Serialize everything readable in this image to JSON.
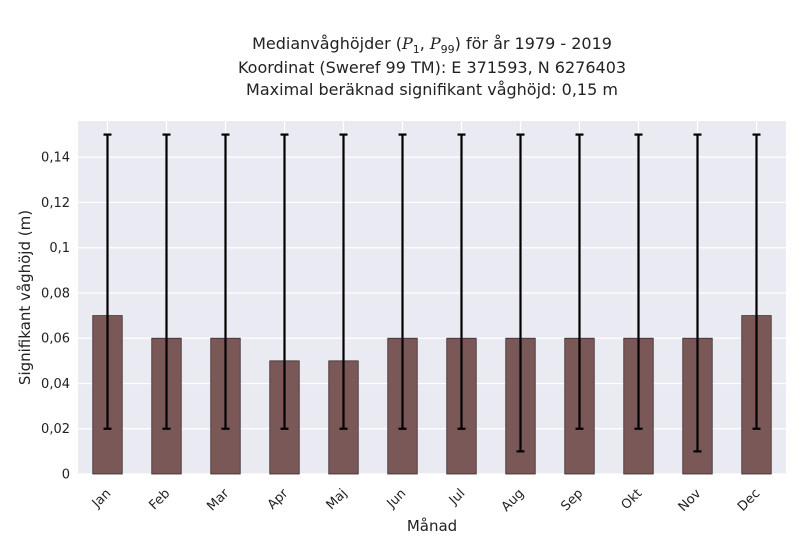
{
  "title": {
    "line1_prefix": "Medianvåghöjder (",
    "p_a": "P",
    "p_a_sub": "1",
    "sep": ", ",
    "p_b": "P",
    "p_b_sub": "99",
    "line1_suffix": ") för år 1979 - 2019",
    "line2": "Koordinat (Sweref 99 TM): E 371593, N 6276403",
    "line3": "Maximal beräknad signifikant våghöjd: 0,15 m"
  },
  "colors": {
    "plot_bg": "#eaeaf2",
    "grid": "#ffffff",
    "bar": "#7b5858",
    "bar_edge": "#3a2a2a",
    "errorbar": "#000000"
  },
  "chart_data": {
    "type": "bar",
    "categories": [
      "Jan",
      "Feb",
      "Mar",
      "Apr",
      "Maj",
      "Jun",
      "Jul",
      "Aug",
      "Sep",
      "Okt",
      "Nov",
      "Dec"
    ],
    "values": [
      0.07,
      0.06,
      0.06,
      0.05,
      0.05,
      0.06,
      0.06,
      0.06,
      0.06,
      0.06,
      0.06,
      0.07
    ],
    "err_low": [
      0.02,
      0.02,
      0.02,
      0.02,
      0.02,
      0.02,
      0.02,
      0.01,
      0.02,
      0.02,
      0.01,
      0.02
    ],
    "err_high": [
      0.15,
      0.15,
      0.15,
      0.15,
      0.15,
      0.15,
      0.15,
      0.15,
      0.15,
      0.15,
      0.15,
      0.15
    ],
    "xlabel": "Månad",
    "ylabel": "Signifikant våghöjd (m)",
    "ylim": [
      0,
      0.156
    ],
    "yticks": [
      0,
      0.02,
      0.04,
      0.06,
      0.08,
      0.1,
      0.12,
      0.14
    ],
    "ytick_labels": [
      "0",
      "0,02",
      "0,04",
      "0,06",
      "0,08",
      "0,1",
      "0,12",
      "0,14"
    ],
    "grid": true,
    "legend": "none"
  }
}
